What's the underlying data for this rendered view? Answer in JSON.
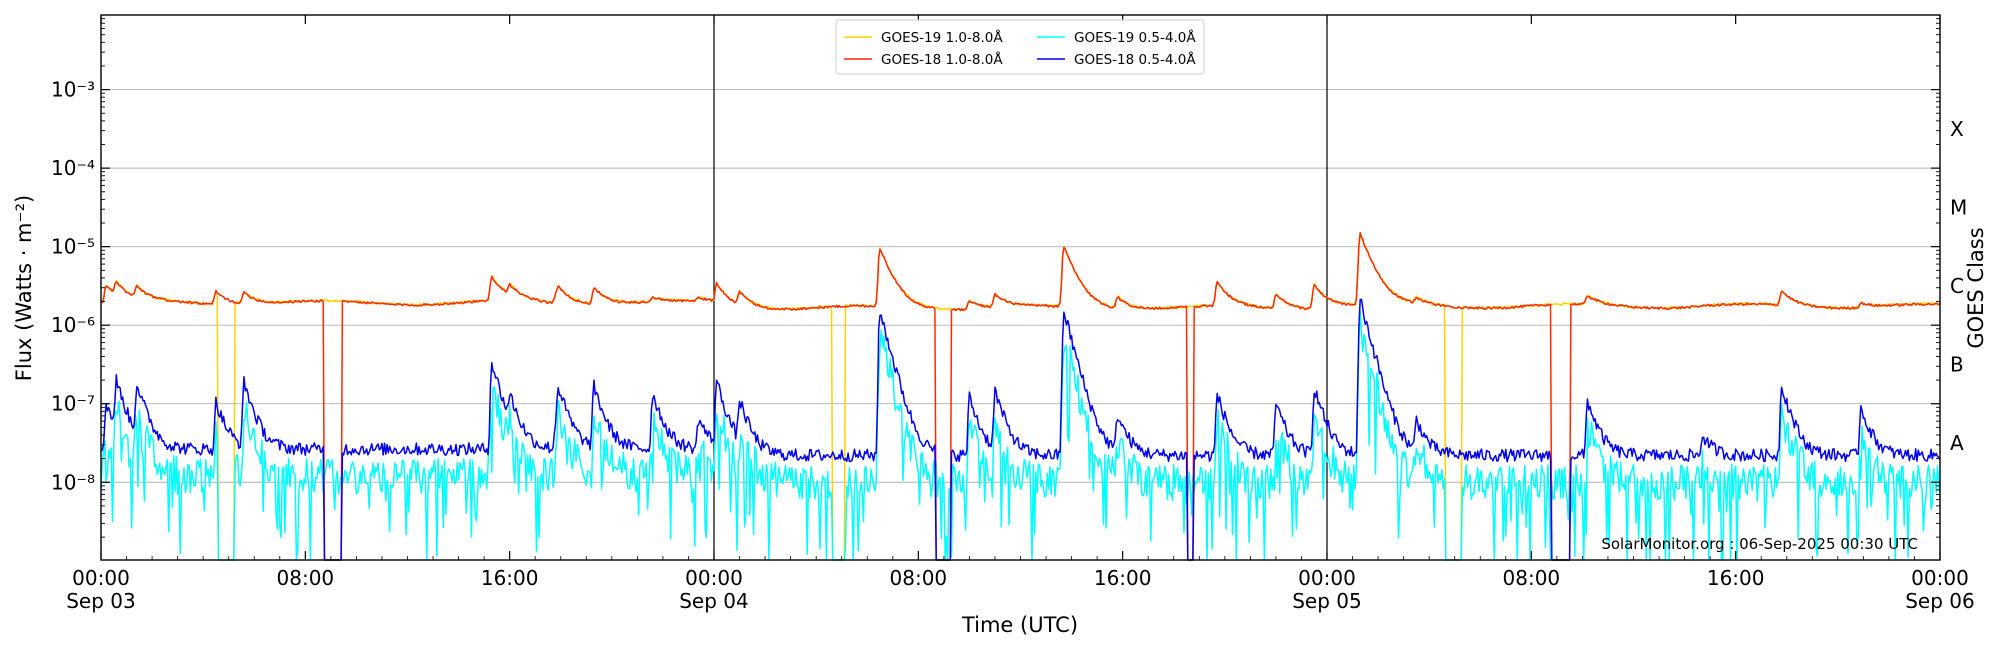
{
  "chart_data": {
    "type": "line",
    "title": "",
    "xlabel": "Time (UTC)",
    "ylabel": "Flux (Watts · m⁻²)",
    "ylabel_right": "GOES Class",
    "xlim_hours": [
      0,
      72
    ],
    "ylim_log10": [
      -8.99,
      -2.05
    ],
    "y_scale": "log",
    "grid": "horizontal",
    "legend_position": "top-center",
    "x_ticks": [
      {
        "hour": 0,
        "time": "00:00",
        "date": "Sep 03"
      },
      {
        "hour": 8,
        "time": "08:00",
        "date": ""
      },
      {
        "hour": 16,
        "time": "16:00",
        "date": ""
      },
      {
        "hour": 24,
        "time": "00:00",
        "date": "Sep 04"
      },
      {
        "hour": 32,
        "time": "08:00",
        "date": ""
      },
      {
        "hour": 40,
        "time": "16:00",
        "date": ""
      },
      {
        "hour": 48,
        "time": "00:00",
        "date": "Sep 05"
      },
      {
        "hour": 56,
        "time": "08:00",
        "date": ""
      },
      {
        "hour": 64,
        "time": "16:00",
        "date": ""
      },
      {
        "hour": 72,
        "time": "00:00",
        "date": "Sep 06"
      }
    ],
    "y_ticks": [
      {
        "exp": -8,
        "label": "10⁻⁸"
      },
      {
        "exp": -7,
        "label": "10⁻⁷"
      },
      {
        "exp": -6,
        "label": "10⁻⁶"
      },
      {
        "exp": -5,
        "label": "10⁻⁵"
      },
      {
        "exp": -4,
        "label": "10⁻⁴"
      },
      {
        "exp": -3,
        "label": "10⁻³"
      }
    ],
    "goes_classes": [
      {
        "label": "A",
        "exp": -7.5
      },
      {
        "label": "B",
        "exp": -6.5
      },
      {
        "label": "C",
        "exp": -5.5
      },
      {
        "label": "M",
        "exp": -4.5
      },
      {
        "label": "X",
        "exp": -3.5
      }
    ],
    "day_lines_hours": [
      24,
      48
    ],
    "background": {
      "long": {
        "base": 1.75e-06,
        "day_ratio": [
          1.1,
          0.95,
          1.0
        ]
      },
      "short": {
        "base": 2.2e-08,
        "day_ratio": [
          1.2,
          1.0,
          1.0
        ]
      }
    },
    "flares": [
      {
        "t": 0.2,
        "peak": 3e-06,
        "speak": 1e-07
      },
      {
        "t": 0.6,
        "peak": 2.8e-06,
        "speak": 1.7e-07
      },
      {
        "t": 1.4,
        "peak": 2.6e-06,
        "speak": 1.6e-07
      },
      {
        "t": 4.5,
        "peak": 2.6e-06,
        "speak": 1e-07
      },
      {
        "t": 5.6,
        "peak": 2.5e-06,
        "speak": 1.8e-07
      },
      {
        "t": 15.3,
        "peak": 3.9e-06,
        "speak": 3.3e-07
      },
      {
        "t": 16.0,
        "peak": 2.6e-06,
        "speak": 9e-08
      },
      {
        "t": 17.8,
        "peak": 2.2e-06,
        "speak": 5e-08
      },
      {
        "t": 17.9,
        "peak": 2.6e-06,
        "speak": 1.4e-07
      },
      {
        "t": 19.3,
        "peak": 2.9e-06,
        "speak": 1.6e-07
      },
      {
        "t": 21.6,
        "peak": 2e-06,
        "speak": 1.3e-07
      },
      {
        "t": 23.4,
        "peak": 2e-06,
        "speak": 6e-08
      },
      {
        "t": 24.1,
        "peak": 3.4e-06,
        "speak": 1.9e-07
      },
      {
        "t": 25.0,
        "peak": 2.6e-06,
        "speak": 1e-07
      },
      {
        "t": 30.5,
        "peak": 9.5e-06,
        "speak": 1.5e-06
      },
      {
        "t": 34.0,
        "peak": 2.2e-06,
        "speak": 1.2e-07
      },
      {
        "t": 35.0,
        "peak": 2.5e-06,
        "speak": 1.4e-07
      },
      {
        "t": 37.7,
        "peak": 1e-05,
        "speak": 1.5e-06
      },
      {
        "t": 39.8,
        "peak": 2.4e-06,
        "speak": 7e-08
      },
      {
        "t": 43.7,
        "peak": 3.5e-06,
        "speak": 1.3e-07
      },
      {
        "t": 46.0,
        "peak": 2.6e-06,
        "speak": 1e-07
      },
      {
        "t": 47.5,
        "peak": 3.5e-06,
        "speak": 1.6e-07
      },
      {
        "t": 49.3,
        "peak": 1.45e-05,
        "speak": 2.1e-06
      },
      {
        "t": 51.5,
        "peak": 2.1e-06,
        "speak": 6e-08
      },
      {
        "t": 58.2,
        "peak": 2.3e-06,
        "speak": 1.1e-07
      },
      {
        "t": 62.7,
        "peak": 1.8e-06,
        "speak": 4e-08
      },
      {
        "t": 65.8,
        "peak": 2.7e-06,
        "speak": 1.7e-07
      },
      {
        "t": 68.9,
        "peak": 2e-06,
        "speak": 9e-08
      }
    ],
    "series": [
      {
        "name": "GOES-19 1.0-8.0Å",
        "color": "#ffd200",
        "band": "long",
        "z": 1,
        "gaps": [
          [
            4.6,
            5.2
          ],
          [
            28.6,
            29.1
          ],
          [
            52.6,
            53.3
          ]
        ]
      },
      {
        "name": "GOES-18 1.0-8.0Å",
        "color": "#ff2a00",
        "band": "long",
        "z": 3,
        "gaps": [
          [
            8.75,
            9.4
          ],
          [
            32.7,
            33.3
          ],
          [
            42.55,
            42.75
          ],
          [
            56.8,
            57.5
          ]
        ]
      },
      {
        "name": "GOES-19 0.5-4.0Å",
        "color": "#00ffff",
        "band": "short",
        "z": 2,
        "gaps": [
          [
            4.6,
            5.2
          ],
          [
            28.6,
            29.1
          ],
          [
            52.6,
            53.3
          ]
        ]
      },
      {
        "name": "GOES-18 0.5-4.0Å",
        "color": "#0000ee",
        "band": "short",
        "z": 4,
        "gaps": [
          [
            8.75,
            9.4
          ],
          [
            32.7,
            33.3
          ],
          [
            42.55,
            42.75
          ],
          [
            56.8,
            57.5
          ]
        ]
      }
    ],
    "credit": "SolarMonitor.org : 06-Sep-2025 00:30 UTC"
  }
}
